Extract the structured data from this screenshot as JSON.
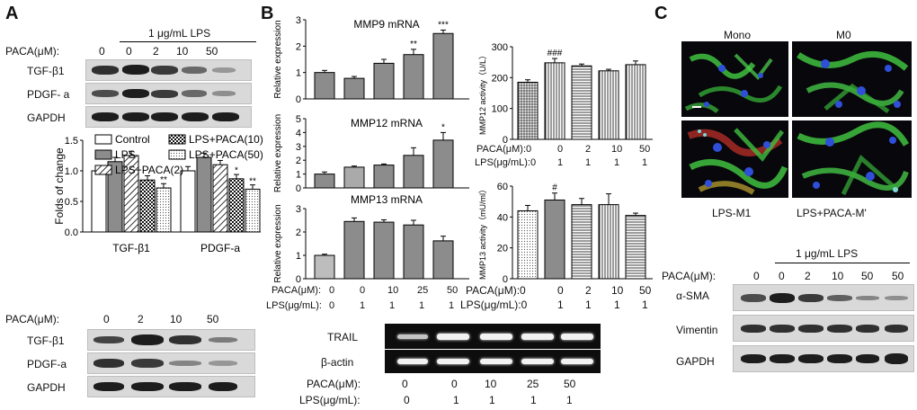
{
  "panels": {
    "A": "A",
    "B": "B",
    "C": "C"
  },
  "panelA": {
    "treatment_header": "1 μg/mL LPS",
    "paca_label": "PACA(μM):",
    "paca_values": [
      "0",
      "0",
      "2",
      "10",
      "50"
    ],
    "blot_rows": [
      "TGF-β1",
      "PDGF- a",
      "GAPDH"
    ],
    "lower_paca_label": "PACA(μM):",
    "lower_paca_values": [
      "0",
      "2",
      "10",
      "50"
    ],
    "lower_blot_rows": [
      "TGF-β1",
      "PDGF-a",
      "GAPDH"
    ]
  },
  "panelB": {
    "gel_rows": [
      "TRAIL",
      "β-actin"
    ],
    "paca_label": "PACA(μM):",
    "paca_values": [
      "0",
      "0",
      "10",
      "25",
      "50"
    ],
    "lps_label": "LPS(μg/mL):",
    "lps_values": [
      "0",
      "1",
      "1",
      "1",
      "1"
    ],
    "mmp_chart_paca_label": "PACA(μM):",
    "mmp_chart_paca_values": [
      "0",
      "0",
      "10",
      "25",
      "50"
    ],
    "mmp_chart_lps_label": "LPS(μg/mL):",
    "mmp_chart_lps_values": [
      "0",
      "1",
      "1",
      "1",
      "1"
    ],
    "activity_paca_label": "PACA(μM):0",
    "activity_paca_values": [
      "0",
      "2",
      "10",
      "50"
    ],
    "activity_lps_label": "LPS(μg/mL):0",
    "activity_lps_values": [
      "1",
      "1",
      "1",
      "1"
    ]
  },
  "panelC": {
    "micrograph_labels": [
      "Mono",
      "M0",
      "LPS-M1",
      "LPS+PACA-M'"
    ],
    "treatment_header": "1 μg/mL LPS",
    "paca_label": "PACA(μM):",
    "paca_values": [
      "0",
      "0",
      "2",
      "10",
      "50",
      "50"
    ],
    "blot_rows": [
      "α-SMA",
      "Vimentin",
      "GAPDH"
    ]
  },
  "colors": {
    "gel_bg": "#0d0d0d",
    "micro_green": "#3fbf3f",
    "micro_blue": "#2f4fd8",
    "micro_red": "#c8322b"
  },
  "chart_data": [
    {
      "type": "bar",
      "ylabel": "Folds of change",
      "categories": [
        "TGF-β1",
        "PDGF-a"
      ],
      "ylim": [
        0,
        1.5
      ],
      "yticks": [
        "0.0",
        "0.5",
        "1.0",
        "1.5"
      ],
      "series": [
        {
          "name": "Control",
          "values": [
            1.0,
            1.0
          ]
        },
        {
          "name": "LPS",
          "values": [
            1.15,
            1.22
          ]
        },
        {
          "name": "LPS+PACA(2)",
          "values": [
            1.25,
            1.1
          ]
        },
        {
          "name": "LPS+PACA(10)",
          "values": [
            0.85,
            0.87
          ]
        },
        {
          "name": "LPS+PACA(50)",
          "values": [
            0.72,
            0.7
          ]
        }
      ],
      "annotations": [
        {
          "text": "**",
          "series": 4,
          "category": 0
        },
        {
          "text": "*",
          "series": 3,
          "category": 1
        },
        {
          "text": "**",
          "series": 4,
          "category": 1
        }
      ]
    },
    {
      "type": "bar",
      "title": "MMP9 mRNA",
      "ylabel": "Relative expression",
      "ylim": [
        0,
        3
      ],
      "yticks": [
        "0",
        "1",
        "2",
        "3"
      ],
      "values": [
        1.0,
        0.78,
        1.35,
        1.68,
        2.48
      ],
      "annotations": [
        "",
        "",
        "",
        "**",
        "***"
      ]
    },
    {
      "type": "bar",
      "title": "MMP12 mRNA",
      "ylabel": "Relative expression",
      "ylim": [
        0,
        5
      ],
      "yticks": [
        "0",
        "1",
        "2",
        "3",
        "4",
        "5"
      ],
      "values": [
        1.0,
        1.5,
        1.65,
        2.35,
        3.45
      ],
      "annotations": [
        "",
        "",
        "",
        "",
        "*"
      ]
    },
    {
      "type": "bar",
      "title": "MMP13 mRNA",
      "ylabel": "Relative expression",
      "ylim": [
        0,
        3
      ],
      "yticks": [
        "0",
        "1",
        "2",
        "3"
      ],
      "values": [
        1.0,
        2.45,
        2.42,
        2.3,
        1.62
      ],
      "annotations": [
        "",
        "",
        "",
        "",
        ""
      ]
    },
    {
      "type": "bar",
      "ylabel": "MMP12 activity（U/L）",
      "ylim": [
        0,
        300
      ],
      "yticks": [
        "0",
        "100",
        "200",
        "300"
      ],
      "values": [
        185,
        248,
        238,
        222,
        242
      ],
      "annotations": [
        "",
        "###",
        "",
        "",
        ""
      ]
    },
    {
      "type": "bar",
      "ylabel": "MMP13 activity（mU/ml）",
      "ylim": [
        0,
        60
      ],
      "yticks": [
        "0",
        "20",
        "40",
        "60"
      ],
      "values": [
        44,
        51,
        48,
        48,
        41
      ],
      "annotations": [
        "",
        "#",
        "",
        "",
        ""
      ]
    }
  ]
}
